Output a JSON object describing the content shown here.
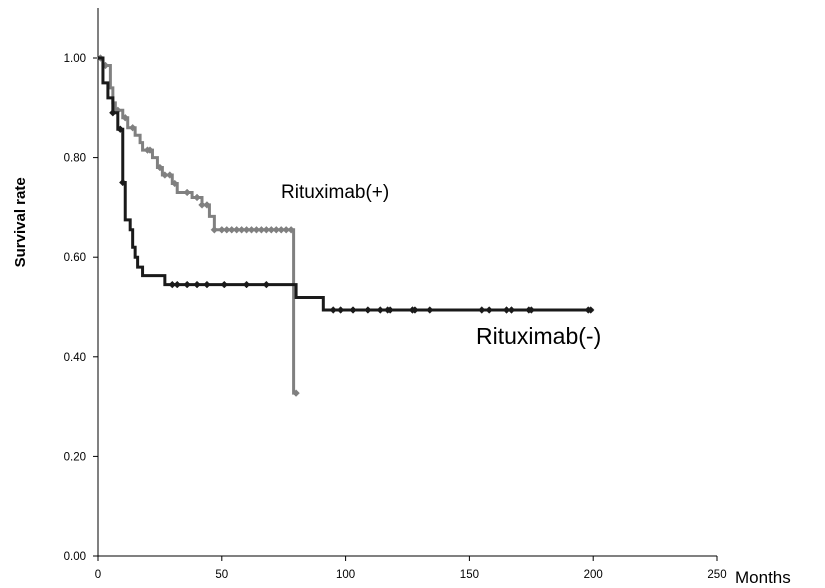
{
  "chart_data": {
    "type": "line",
    "title": "",
    "xlabel": "Months",
    "ylabel": "Survival rate",
    "xlim": [
      0,
      250
    ],
    "ylim": [
      0,
      1.1
    ],
    "x_ticks": [
      "0",
      "50",
      "100",
      "150",
      "200",
      "250"
    ],
    "x_tick_values": [
      0,
      50,
      100,
      150,
      200,
      250
    ],
    "y_ticks": [
      "0.00",
      "0.20",
      "0.40",
      "0.60",
      "0.80",
      "1.00"
    ],
    "y_tick_values": [
      0,
      0.2,
      0.4,
      0.6,
      0.8,
      1.0
    ],
    "grid": false,
    "legend": "none",
    "annotations": [
      {
        "text": "Rituximab(+)",
        "series": 0
      },
      {
        "text": "Rituximab(-)",
        "series": 1
      }
    ],
    "series": [
      {
        "name": "Rituximab(+)",
        "style": "step",
        "color": "#808080",
        "steps": [
          [
            0,
            1.0
          ],
          [
            1,
            1.0
          ],
          [
            2,
            0.985
          ],
          [
            5,
            0.94
          ],
          [
            6,
            0.91
          ],
          [
            7,
            0.895
          ],
          [
            10,
            0.88
          ],
          [
            12,
            0.86
          ],
          [
            15,
            0.845
          ],
          [
            17,
            0.83
          ],
          [
            18,
            0.815
          ],
          [
            22,
            0.8
          ],
          [
            24,
            0.78
          ],
          [
            26,
            0.765
          ],
          [
            30,
            0.748
          ],
          [
            32,
            0.73
          ],
          [
            38,
            0.72
          ],
          [
            42,
            0.705
          ],
          [
            45,
            0.682
          ],
          [
            47,
            0.655
          ],
          [
            78,
            0.655
          ],
          [
            79,
            0.327
          ],
          [
            80,
            0.327
          ]
        ],
        "censored": [
          [
            1,
            1.0
          ],
          [
            3,
            0.985
          ],
          [
            8,
            0.895
          ],
          [
            11,
            0.88
          ],
          [
            14,
            0.86
          ],
          [
            20,
            0.815
          ],
          [
            21,
            0.815
          ],
          [
            25,
            0.78
          ],
          [
            27,
            0.765
          ],
          [
            29,
            0.765
          ],
          [
            31,
            0.748
          ],
          [
            36,
            0.73
          ],
          [
            40,
            0.72
          ],
          [
            42,
            0.705
          ],
          [
            44,
            0.705
          ],
          [
            47,
            0.655
          ],
          [
            50,
            0.655
          ],
          [
            52,
            0.655
          ],
          [
            54,
            0.655
          ],
          [
            56,
            0.655
          ],
          [
            58,
            0.655
          ],
          [
            60,
            0.655
          ],
          [
            62,
            0.655
          ],
          [
            64,
            0.655
          ],
          [
            66,
            0.655
          ],
          [
            68,
            0.655
          ],
          [
            70,
            0.655
          ],
          [
            72,
            0.655
          ],
          [
            74,
            0.655
          ],
          [
            76,
            0.655
          ],
          [
            78,
            0.655
          ],
          [
            80,
            0.327
          ]
        ]
      },
      {
        "name": "Rituximab(-)",
        "style": "step",
        "color": "#1a1a1a",
        "steps": [
          [
            0,
            1.0
          ],
          [
            2,
            0.95
          ],
          [
            4,
            0.92
          ],
          [
            6,
            0.89
          ],
          [
            8,
            0.857
          ],
          [
            10,
            0.75
          ],
          [
            11,
            0.675
          ],
          [
            13,
            0.655
          ],
          [
            14,
            0.62
          ],
          [
            15,
            0.6
          ],
          [
            16,
            0.58
          ],
          [
            18,
            0.563
          ],
          [
            27,
            0.545
          ],
          [
            79,
            0.545
          ],
          [
            80,
            0.519
          ],
          [
            90,
            0.519
          ],
          [
            91,
            0.494
          ],
          [
            200,
            0.494
          ]
        ],
        "censored": [
          [
            6,
            0.89
          ],
          [
            9,
            0.857
          ],
          [
            10,
            0.75
          ],
          [
            30,
            0.545
          ],
          [
            32,
            0.545
          ],
          [
            36,
            0.545
          ],
          [
            40,
            0.545
          ],
          [
            44,
            0.545
          ],
          [
            51,
            0.545
          ],
          [
            60,
            0.545
          ],
          [
            68,
            0.545
          ],
          [
            95,
            0.494
          ],
          [
            98,
            0.494
          ],
          [
            103,
            0.494
          ],
          [
            109,
            0.494
          ],
          [
            114,
            0.494
          ],
          [
            117,
            0.494
          ],
          [
            118,
            0.494
          ],
          [
            127,
            0.494
          ],
          [
            128,
            0.494
          ],
          [
            134,
            0.494
          ],
          [
            155,
            0.494
          ],
          [
            158,
            0.494
          ],
          [
            165,
            0.494
          ],
          [
            167,
            0.494
          ],
          [
            174,
            0.494
          ],
          [
            175,
            0.494
          ],
          [
            198,
            0.494
          ],
          [
            199,
            0.494
          ]
        ]
      }
    ]
  }
}
